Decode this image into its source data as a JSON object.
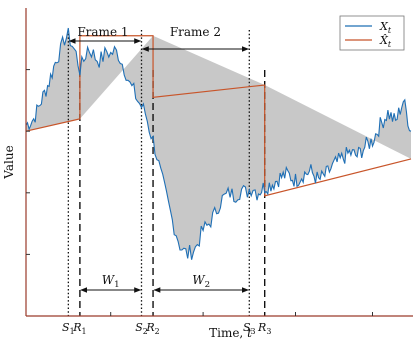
{
  "chart_data": {
    "type": "line",
    "title": "",
    "xlabel": "Time, t",
    "ylabel": "Value",
    "grid": false,
    "legend_position": "top-right",
    "legend": [
      {
        "label": "X_t",
        "color": "#1f6fb5"
      },
      {
        "label": "X̂_t",
        "color": "#c8552a"
      }
    ],
    "x_range": [
      0,
      100
    ],
    "y_range": [
      0,
      100
    ],
    "series_Xt_color": "#1f6fb5",
    "series_Xhat_color": "#c8552a",
    "fill_color": "#c8c8c8",
    "anchors_Xt": [
      [
        0,
        62
      ],
      [
        2,
        64
      ],
      [
        4,
        70
      ],
      [
        6,
        76
      ],
      [
        8,
        84
      ],
      [
        9,
        86
      ],
      [
        10,
        90
      ],
      [
        11,
        91
      ],
      [
        12,
        88
      ],
      [
        13,
        85
      ],
      [
        14,
        80
      ],
      [
        15,
        83
      ],
      [
        16,
        87
      ],
      [
        17,
        86
      ],
      [
        18,
        84
      ],
      [
        19,
        83
      ],
      [
        20,
        84
      ],
      [
        21,
        86
      ],
      [
        22,
        85
      ],
      [
        23,
        86
      ],
      [
        24,
        85
      ],
      [
        25,
        82
      ],
      [
        26,
        79
      ],
      [
        27,
        75
      ],
      [
        28,
        73
      ],
      [
        29,
        70
      ],
      [
        30,
        68
      ],
      [
        31,
        66
      ],
      [
        32,
        61
      ],
      [
        33,
        57
      ],
      [
        34,
        52
      ],
      [
        35,
        46
      ],
      [
        36,
        41
      ],
      [
        37,
        36
      ],
      [
        38,
        31
      ],
      [
        39,
        27
      ],
      [
        40,
        23
      ],
      [
        41,
        21
      ],
      [
        42,
        20
      ],
      [
        43,
        21
      ],
      [
        44,
        22
      ],
      [
        45,
        25
      ],
      [
        46,
        28
      ],
      [
        47,
        29
      ],
      [
        48,
        31
      ],
      [
        49,
        33
      ],
      [
        50,
        36
      ],
      [
        51,
        38
      ],
      [
        52,
        39
      ],
      [
        53,
        40
      ],
      [
        54,
        39
      ],
      [
        55,
        40
      ],
      [
        56,
        41
      ],
      [
        57,
        40
      ],
      [
        58,
        41
      ],
      [
        59,
        42
      ],
      [
        60,
        40
      ],
      [
        62,
        42
      ],
      [
        64,
        43
      ],
      [
        66,
        45
      ],
      [
        68,
        46
      ],
      [
        70,
        44
      ],
      [
        72,
        46
      ],
      [
        74,
        47
      ],
      [
        76,
        44
      ],
      [
        78,
        46
      ],
      [
        80,
        49
      ],
      [
        82,
        51
      ],
      [
        84,
        53
      ],
      [
        86,
        52
      ],
      [
        88,
        55
      ],
      [
        90,
        57
      ],
      [
        92,
        62
      ],
      [
        94,
        66
      ],
      [
        96,
        63
      ],
      [
        98,
        70
      ],
      [
        100,
        60
      ]
    ],
    "frames_Xhat": [
      {
        "x_start": 0,
        "x_end": 14,
        "y_start": 60,
        "y_end": 64
      },
      {
        "x_start": 14,
        "x_end": 33,
        "y_start": 91,
        "y_end": 91
      },
      {
        "x_start": 33,
        "x_end": 62,
        "y_start": 71,
        "y_end": 75
      },
      {
        "x_start": 62,
        "x_end": 100,
        "y_start": 39,
        "y_end": 51
      }
    ],
    "markers": [
      {
        "label": "S",
        "sub": "1",
        "x": 11
      },
      {
        "label": "R",
        "sub": "1",
        "x": 14
      },
      {
        "label": "S",
        "sub": "2",
        "x": 30
      },
      {
        "label": "R",
        "sub": "2",
        "x": 33
      },
      {
        "label": "S",
        "sub": "3",
        "x": 58
      },
      {
        "label": "R",
        "sub": "3",
        "x": 62
      }
    ],
    "frames": [
      {
        "label": "Frame 1",
        "x_start": 11,
        "x_end": 30
      },
      {
        "label": "Frame 2",
        "x_start": 30,
        "x_end": 58
      }
    ],
    "windows": [
      {
        "label": "W",
        "sub": "1",
        "x_start": 14,
        "x_end": 30
      },
      {
        "label": "W",
        "sub": "2",
        "x_start": 33,
        "x_end": 58
      }
    ]
  }
}
